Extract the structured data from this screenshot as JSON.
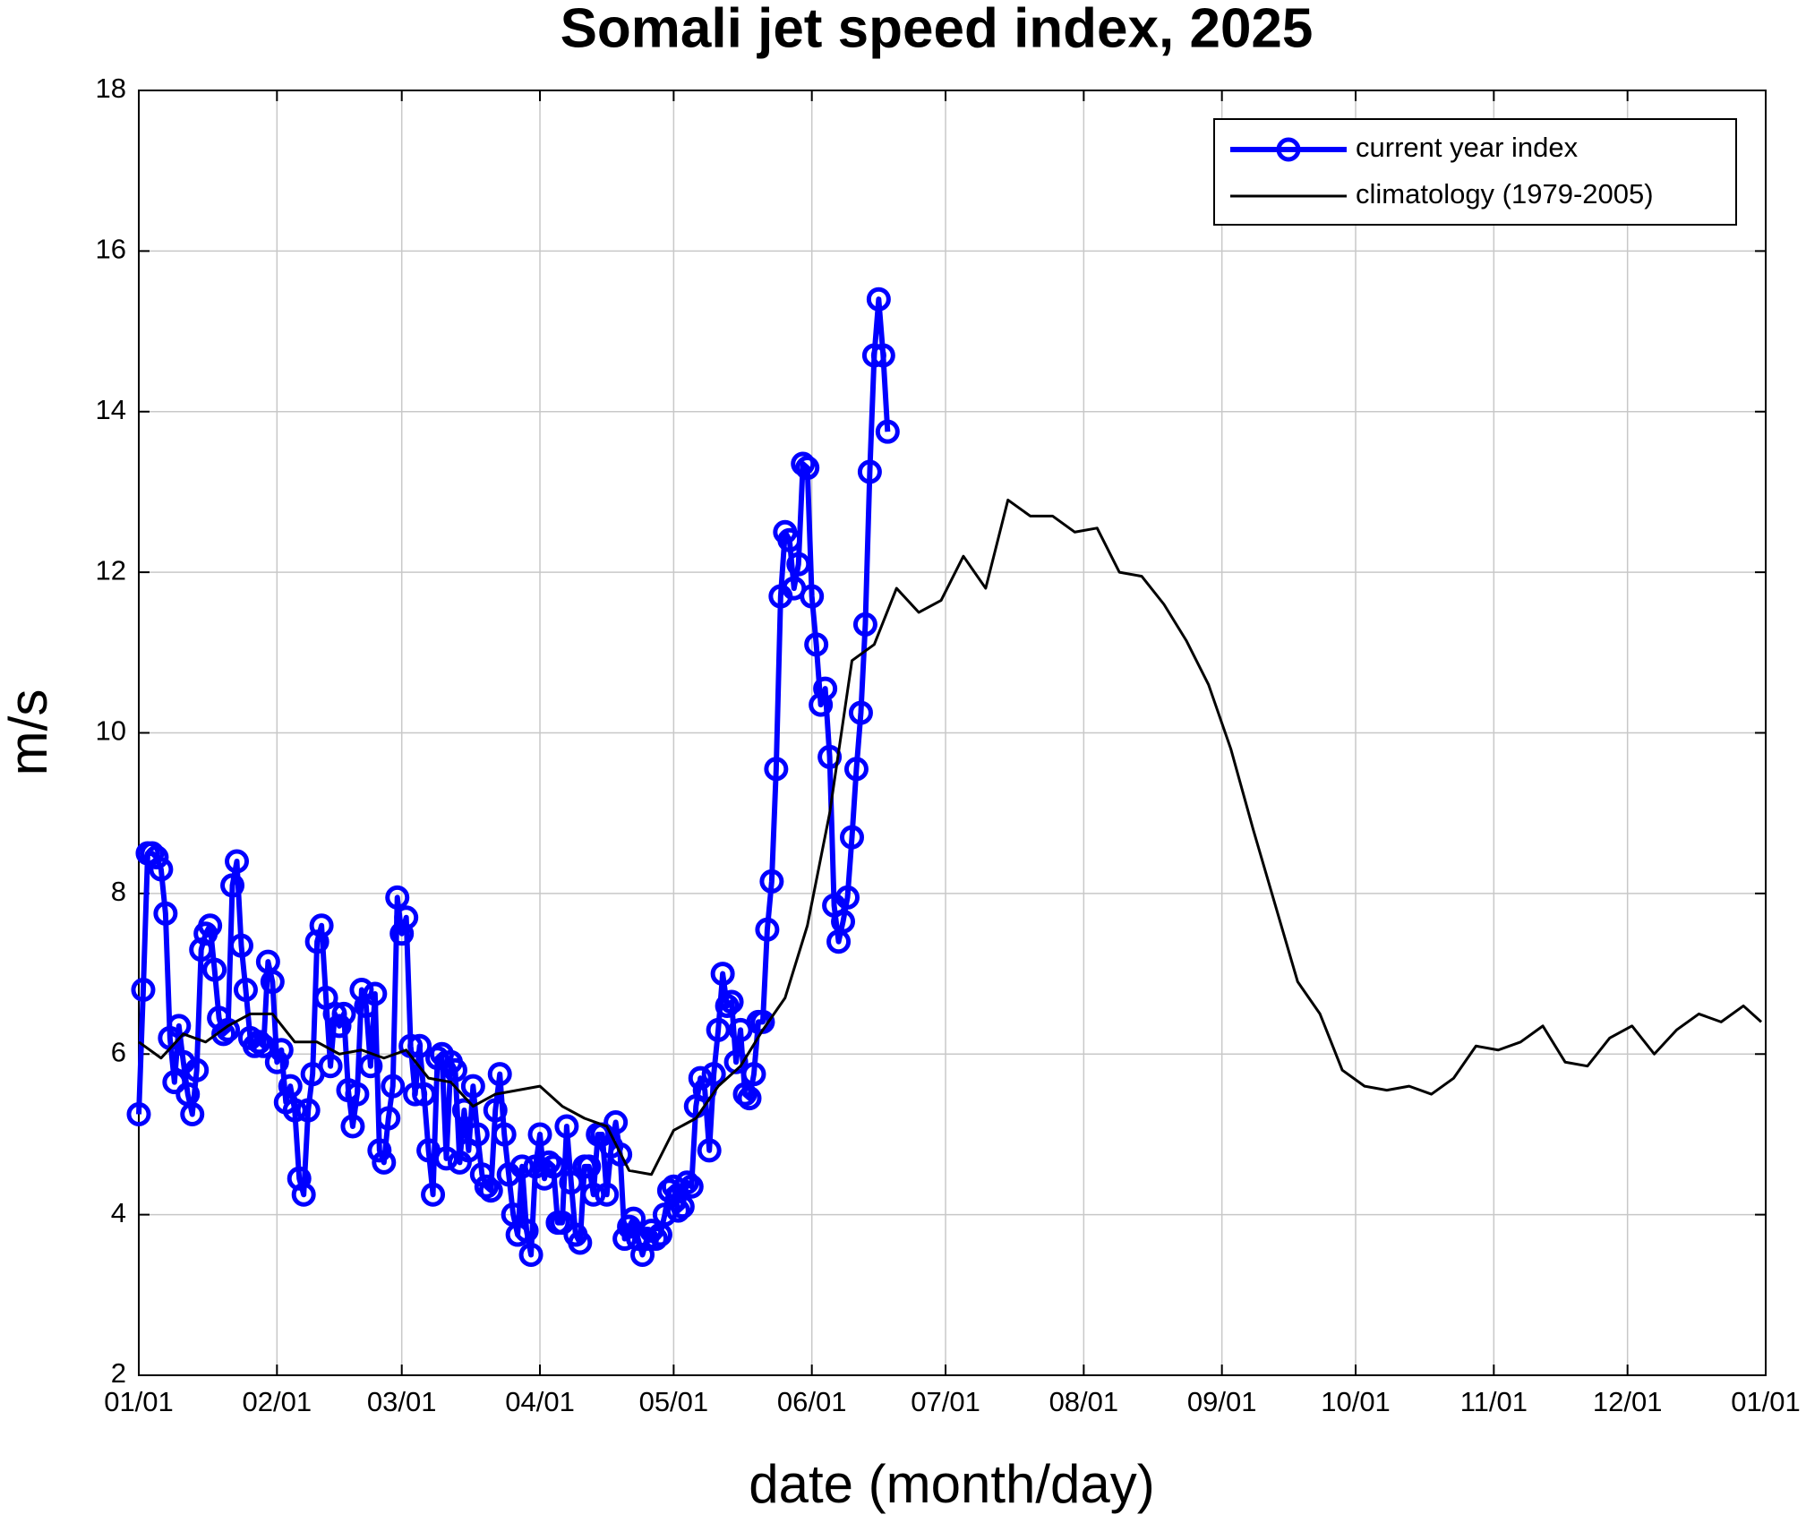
{
  "chart_data": {
    "type": "line",
    "title": "Somali jet speed index, 2025",
    "x_label": "date (month/day)",
    "y_label": "m/s",
    "xlim": [
      0,
      365
    ],
    "ylim": [
      2,
      18
    ],
    "xticks": [
      {
        "value": 0,
        "label": "01/01"
      },
      {
        "value": 31,
        "label": "02/01"
      },
      {
        "value": 59,
        "label": "03/01"
      },
      {
        "value": 90,
        "label": "04/01"
      },
      {
        "value": 120,
        "label": "05/01"
      },
      {
        "value": 151,
        "label": "06/01"
      },
      {
        "value": 181,
        "label": "07/01"
      },
      {
        "value": 212,
        "label": "08/01"
      },
      {
        "value": 243,
        "label": "09/01"
      },
      {
        "value": 273,
        "label": "10/01"
      },
      {
        "value": 304,
        "label": "11/01"
      },
      {
        "value": 334,
        "label": "12/01"
      },
      {
        "value": 365,
        "label": "01/01"
      }
    ],
    "yticks": [
      2,
      4,
      6,
      8,
      10,
      12,
      14,
      16,
      18
    ],
    "grid": true,
    "legend": "upper right",
    "series": [
      {
        "name": "current year index",
        "color": "#0000ff",
        "markers": true,
        "x": [
          0,
          1,
          2,
          3,
          4,
          5,
          6,
          7,
          8,
          9,
          10,
          11,
          12,
          13,
          14,
          15,
          16,
          17,
          18,
          19,
          20,
          21,
          22,
          23,
          24,
          25,
          26,
          27,
          28,
          29,
          30,
          31,
          32,
          33,
          34,
          35,
          36,
          37,
          38,
          39,
          40,
          41,
          42,
          43,
          44,
          45,
          46,
          47,
          48,
          49,
          50,
          51,
          52,
          53,
          54,
          55,
          56,
          57,
          58,
          59,
          60,
          61,
          62,
          63,
          64,
          65,
          66,
          67,
          68,
          69,
          70,
          71,
          72,
          73,
          74,
          75,
          76,
          77,
          78,
          79,
          80,
          81,
          82,
          83,
          84,
          85,
          86,
          87,
          88,
          89,
          90,
          91,
          92,
          93,
          94,
          95,
          96,
          97,
          98,
          99,
          100,
          101,
          102,
          103,
          104,
          105,
          106,
          107,
          108,
          109,
          110,
          111,
          112,
          113,
          114,
          115,
          116,
          117,
          118,
          119,
          120,
          121,
          122,
          123,
          124,
          125,
          126,
          127,
          128,
          129,
          130,
          131,
          132,
          133,
          134,
          135,
          136,
          137,
          138,
          139,
          140,
          141,
          142,
          143,
          144,
          145,
          146,
          147,
          148,
          149,
          150,
          151,
          152,
          153,
          154,
          155,
          156,
          157,
          158,
          159,
          160,
          161,
          162,
          163,
          164,
          165,
          166,
          167,
          168
        ],
        "values": [
          5.25,
          6.8,
          8.5,
          8.5,
          8.45,
          8.3,
          7.75,
          6.2,
          5.65,
          6.35,
          5.9,
          5.5,
          5.25,
          5.8,
          7.3,
          7.5,
          7.6,
          7.05,
          6.45,
          6.25,
          6.3,
          8.1,
          8.4,
          7.35,
          6.8,
          6.2,
          6.1,
          6.15,
          6.1,
          7.15,
          6.9,
          5.9,
          6.05,
          5.4,
          5.6,
          5.3,
          4.45,
          4.25,
          5.3,
          5.75,
          7.4,
          7.6,
          6.7,
          5.85,
          6.5,
          6.35,
          6.5,
          5.55,
          5.1,
          5.5,
          6.8,
          6.6,
          5.85,
          6.75,
          4.8,
          4.65,
          5.2,
          5.6,
          7.95,
          7.5,
          7.7,
          6.1,
          5.5,
          6.1,
          5.5,
          4.8,
          4.25,
          5.95,
          6.0,
          4.7,
          5.9,
          5.8,
          4.65,
          5.3,
          4.8,
          5.6,
          5.0,
          4.5,
          4.35,
          4.3,
          5.3,
          5.75,
          5.0,
          4.5,
          4.0,
          3.75,
          4.6,
          3.8,
          3.5,
          4.6,
          5.0,
          4.45,
          4.65,
          4.6,
          3.9,
          3.9,
          5.1,
          4.4,
          3.75,
          3.65,
          4.6,
          4.6,
          4.25,
          5.0,
          5.0,
          4.25,
          4.85,
          5.15,
          4.75,
          3.7,
          3.85,
          3.95,
          3.7,
          3.5,
          3.7,
          3.8,
          3.7,
          3.75,
          4.0,
          4.3,
          4.35,
          4.05,
          4.1,
          4.4,
          4.35,
          5.35,
          5.7,
          5.55,
          4.8,
          5.75,
          6.3,
          7.0,
          6.6,
          6.65,
          5.9,
          6.3,
          5.5,
          5.45,
          5.75,
          6.4,
          6.4,
          7.55,
          8.15,
          9.55,
          11.7,
          12.5,
          12.4,
          11.8,
          12.1,
          13.35,
          13.3,
          11.7,
          11.1,
          10.35,
          10.55,
          9.7,
          7.85,
          7.4,
          7.65,
          7.95,
          8.7,
          9.55,
          10.25,
          11.35,
          13.25,
          14.7,
          15.4,
          14.7,
          13.75
        ]
      },
      {
        "name": "climatology (1979-2005)",
        "color": "#000000",
        "markers": false,
        "x": [
          0,
          5,
          10,
          15,
          20,
          25,
          30,
          35,
          40,
          45,
          50,
          55,
          60,
          65,
          70,
          75,
          80,
          85,
          90,
          95,
          100,
          105,
          110,
          115,
          120,
          125,
          130,
          135,
          140,
          145,
          150,
          155,
          160,
          165,
          170,
          175,
          180,
          185,
          190,
          195,
          200,
          205,
          210,
          215,
          220,
          225,
          230,
          235,
          240,
          245,
          250,
          255,
          260,
          265,
          270,
          275,
          280,
          285,
          290,
          295,
          300,
          305,
          310,
          315,
          320,
          325,
          330,
          335,
          340,
          345,
          350,
          355,
          360,
          364
        ],
        "values": [
          6.15,
          5.95,
          6.25,
          6.15,
          6.35,
          6.5,
          6.5,
          6.15,
          6.15,
          6.0,
          6.05,
          5.95,
          6.05,
          5.7,
          5.65,
          5.35,
          5.5,
          5.55,
          5.6,
          5.35,
          5.2,
          5.1,
          4.55,
          4.5,
          5.05,
          5.2,
          5.6,
          5.85,
          6.3,
          6.7,
          7.6,
          9.0,
          10.9,
          11.1,
          11.8,
          11.5,
          11.65,
          12.2,
          11.8,
          12.9,
          12.7,
          12.7,
          12.5,
          12.55,
          12.0,
          11.95,
          11.6,
          11.15,
          10.6,
          9.8,
          8.8,
          7.85,
          6.9,
          6.5,
          5.8,
          5.6,
          5.55,
          5.6,
          5.5,
          5.7,
          6.1,
          6.05,
          6.15,
          6.35,
          5.9,
          5.85,
          6.2,
          6.35,
          6.0,
          6.3,
          6.5,
          6.4,
          6.6,
          6.4
        ]
      }
    ]
  }
}
